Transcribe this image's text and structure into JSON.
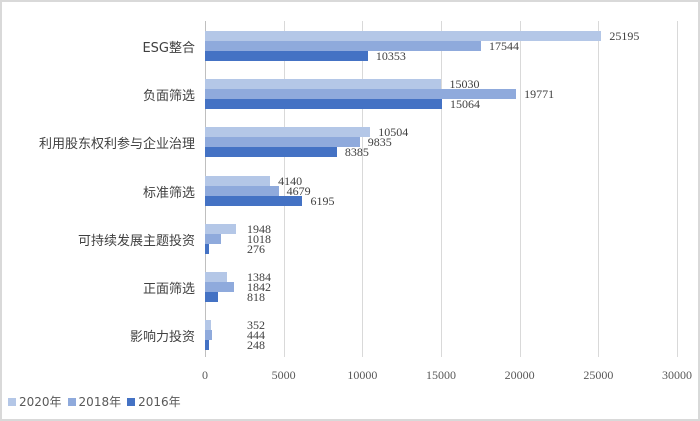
{
  "chart_data": {
    "type": "bar",
    "orientation": "horizontal",
    "title": "",
    "xlabel": "",
    "ylabel": "",
    "xlim": [
      0,
      30000
    ],
    "x_ticks": [
      "0",
      "5000",
      "10000",
      "15000",
      "20000",
      "25000",
      "30000"
    ],
    "grid": true,
    "legend_position": "bottom-left",
    "categories": [
      "ESG整合",
      "负面筛选",
      "利用股东权利参与企业治理",
      "标准筛选",
      "可持续发展主题投资",
      "正面筛选",
      "影响力投资"
    ],
    "series": [
      {
        "name": "2020年",
        "color": "#b4c7e7",
        "values": [
          25195,
          15030,
          10504,
          4140,
          1948,
          1384,
          352
        ]
      },
      {
        "name": "2018年",
        "color": "#8faadc",
        "values": [
          17544,
          19771,
          9835,
          4679,
          1018,
          1842,
          444
        ]
      },
      {
        "name": "2016年",
        "color": "#4472c4",
        "values": [
          10353,
          15064,
          8385,
          6195,
          276,
          818,
          248
        ]
      }
    ]
  }
}
